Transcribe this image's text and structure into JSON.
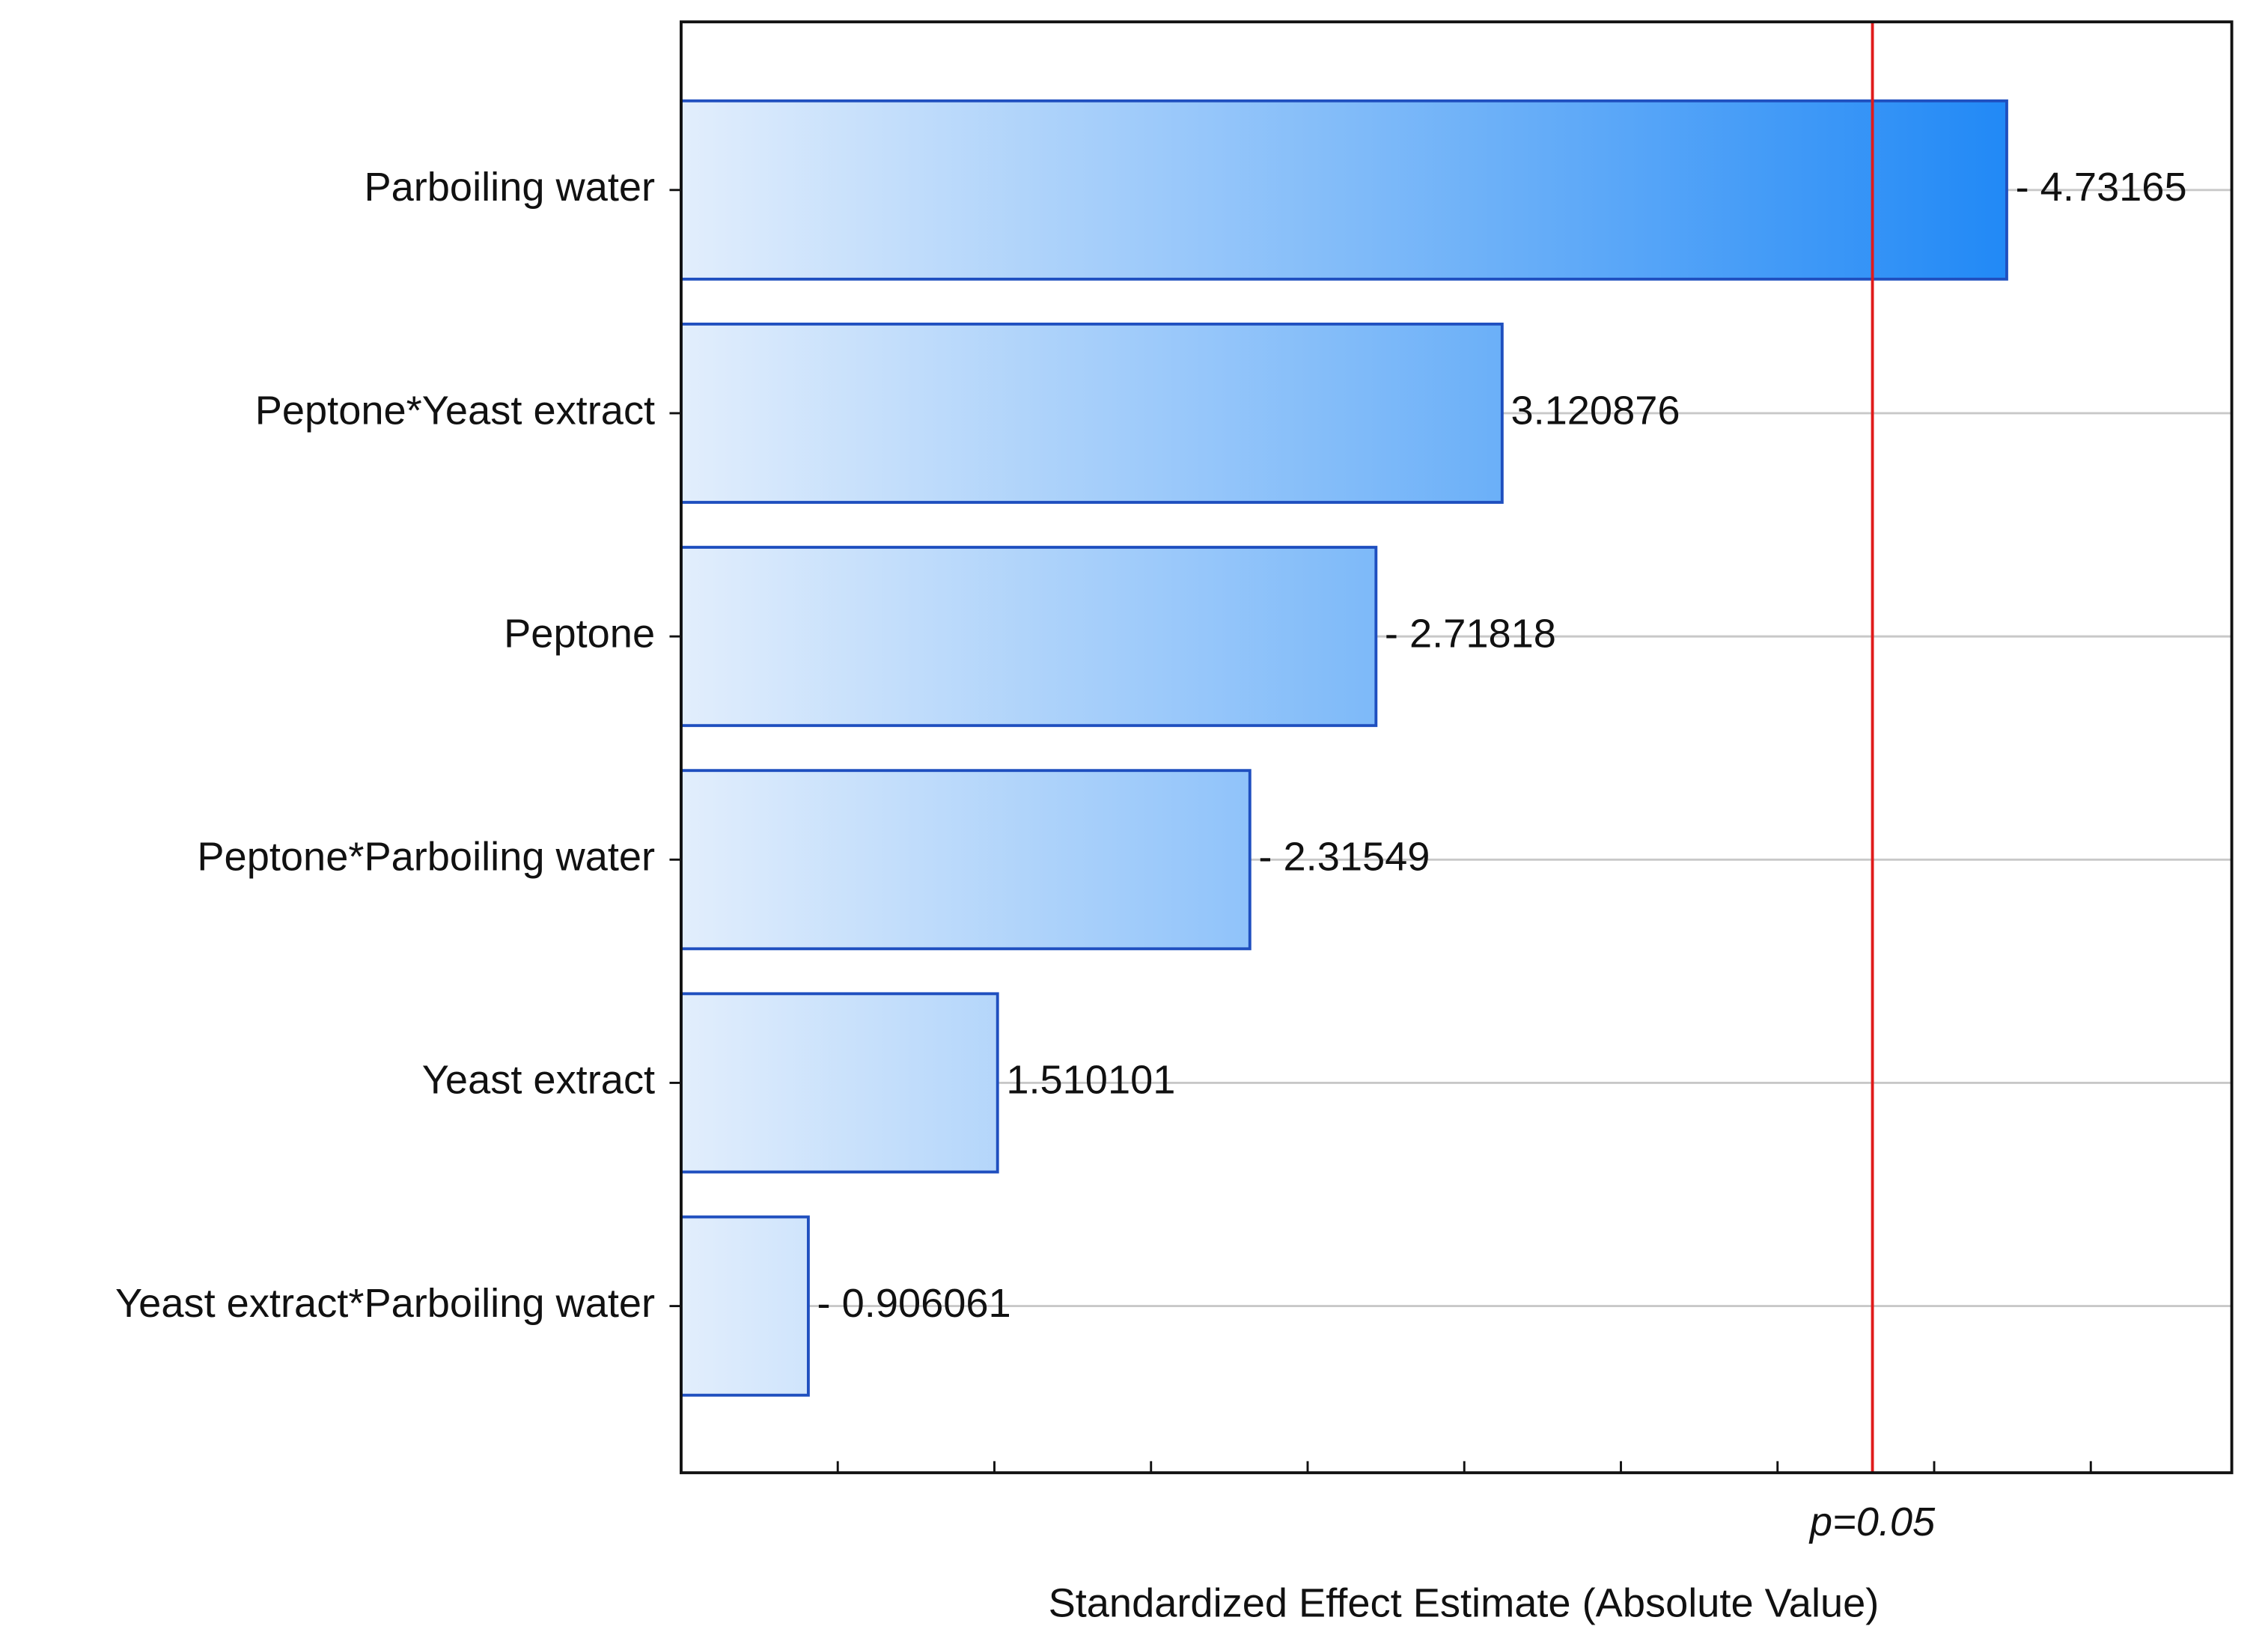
{
  "chart_data": {
    "type": "pareto",
    "categories": [
      "Parboiling water",
      "Peptone*Yeast extract",
      "Peptone",
      "Peptone*Parboiling water",
      "Yeast extract",
      "Yeast extract*Parboiling water"
    ],
    "values": [
      4.73165,
      3.120876,
      2.71818,
      2.31549,
      1.510101,
      0.906061
    ],
    "value_labels": [
      "- 4.73165",
      "3.120876",
      "- 2.71818",
      "- 2.31549",
      "1.510101",
      "- 0.906061"
    ],
    "color": "#2189f6",
    "gradient_start": "#e2eefc",
    "edge_color": "#1f4fbf",
    "xlim": [
      0.5,
      5.45
    ],
    "xticks": [
      1,
      1.5,
      2,
      2.5,
      3,
      3.5,
      4,
      4.5,
      5
    ],
    "reference_line": {
      "value": 4.303,
      "label": "p=0.05",
      "color": "#e01b1b"
    },
    "xlabel": "Standardized Effect Estimate (Absolute Value)",
    "grid": true
  }
}
